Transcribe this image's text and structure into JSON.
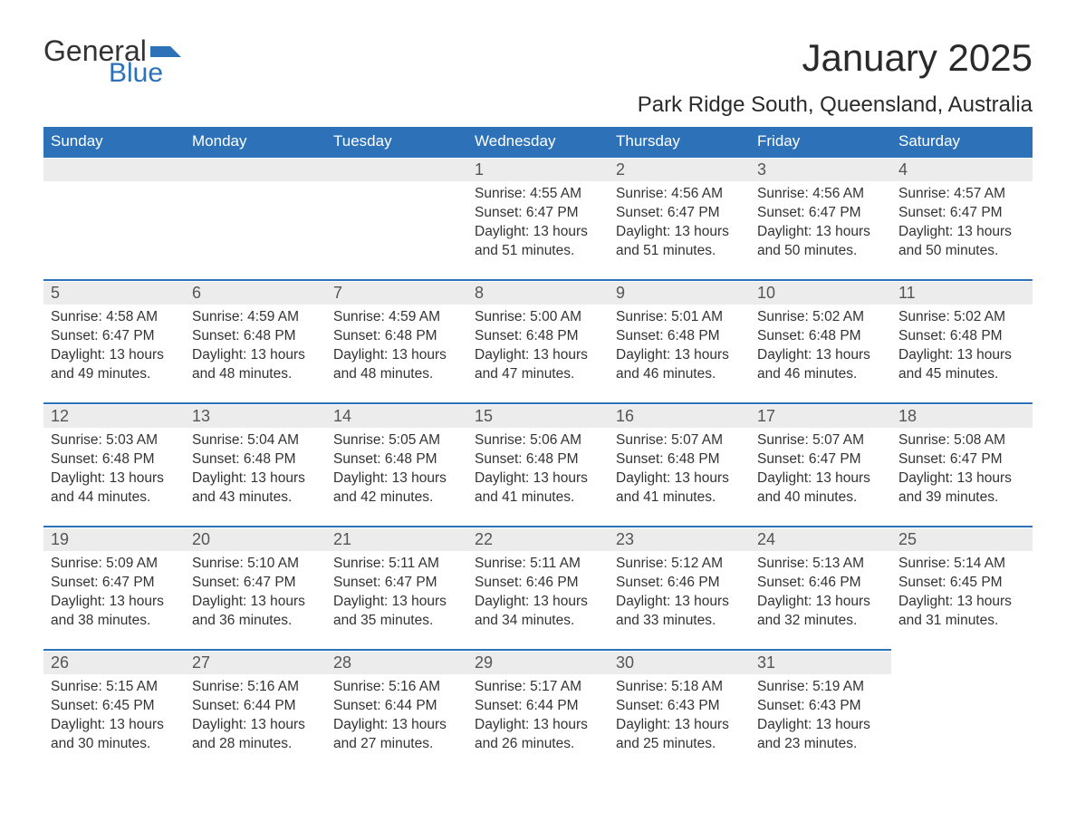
{
  "logo": {
    "text1": "General",
    "text2": "Blue",
    "flag_color": "#2d72b8"
  },
  "title": "January 2025",
  "location": "Park Ridge South, Queensland, Australia",
  "colors": {
    "header_bg": "#2d72b8",
    "header_text": "#ffffff",
    "daynum_bg": "#ececec",
    "daynum_text": "#555555",
    "body_text": "#333333",
    "background": "#ffffff"
  },
  "day_headers": [
    "Sunday",
    "Monday",
    "Tuesday",
    "Wednesday",
    "Thursday",
    "Friday",
    "Saturday"
  ],
  "weeks": [
    [
      {
        "blank": true
      },
      {
        "blank": true
      },
      {
        "blank": true
      },
      {
        "n": "1",
        "sr": "Sunrise: 4:55 AM",
        "ss": "Sunset: 6:47 PM",
        "d1": "Daylight: 13 hours",
        "d2": "and 51 minutes."
      },
      {
        "n": "2",
        "sr": "Sunrise: 4:56 AM",
        "ss": "Sunset: 6:47 PM",
        "d1": "Daylight: 13 hours",
        "d2": "and 51 minutes."
      },
      {
        "n": "3",
        "sr": "Sunrise: 4:56 AM",
        "ss": "Sunset: 6:47 PM",
        "d1": "Daylight: 13 hours",
        "d2": "and 50 minutes."
      },
      {
        "n": "4",
        "sr": "Sunrise: 4:57 AM",
        "ss": "Sunset: 6:47 PM",
        "d1": "Daylight: 13 hours",
        "d2": "and 50 minutes."
      }
    ],
    [
      {
        "n": "5",
        "sr": "Sunrise: 4:58 AM",
        "ss": "Sunset: 6:47 PM",
        "d1": "Daylight: 13 hours",
        "d2": "and 49 minutes."
      },
      {
        "n": "6",
        "sr": "Sunrise: 4:59 AM",
        "ss": "Sunset: 6:48 PM",
        "d1": "Daylight: 13 hours",
        "d2": "and 48 minutes."
      },
      {
        "n": "7",
        "sr": "Sunrise: 4:59 AM",
        "ss": "Sunset: 6:48 PM",
        "d1": "Daylight: 13 hours",
        "d2": "and 48 minutes."
      },
      {
        "n": "8",
        "sr": "Sunrise: 5:00 AM",
        "ss": "Sunset: 6:48 PM",
        "d1": "Daylight: 13 hours",
        "d2": "and 47 minutes."
      },
      {
        "n": "9",
        "sr": "Sunrise: 5:01 AM",
        "ss": "Sunset: 6:48 PM",
        "d1": "Daylight: 13 hours",
        "d2": "and 46 minutes."
      },
      {
        "n": "10",
        "sr": "Sunrise: 5:02 AM",
        "ss": "Sunset: 6:48 PM",
        "d1": "Daylight: 13 hours",
        "d2": "and 46 minutes."
      },
      {
        "n": "11",
        "sr": "Sunrise: 5:02 AM",
        "ss": "Sunset: 6:48 PM",
        "d1": "Daylight: 13 hours",
        "d2": "and 45 minutes."
      }
    ],
    [
      {
        "n": "12",
        "sr": "Sunrise: 5:03 AM",
        "ss": "Sunset: 6:48 PM",
        "d1": "Daylight: 13 hours",
        "d2": "and 44 minutes."
      },
      {
        "n": "13",
        "sr": "Sunrise: 5:04 AM",
        "ss": "Sunset: 6:48 PM",
        "d1": "Daylight: 13 hours",
        "d2": "and 43 minutes."
      },
      {
        "n": "14",
        "sr": "Sunrise: 5:05 AM",
        "ss": "Sunset: 6:48 PM",
        "d1": "Daylight: 13 hours",
        "d2": "and 42 minutes."
      },
      {
        "n": "15",
        "sr": "Sunrise: 5:06 AM",
        "ss": "Sunset: 6:48 PM",
        "d1": "Daylight: 13 hours",
        "d2": "and 41 minutes."
      },
      {
        "n": "16",
        "sr": "Sunrise: 5:07 AM",
        "ss": "Sunset: 6:48 PM",
        "d1": "Daylight: 13 hours",
        "d2": "and 41 minutes."
      },
      {
        "n": "17",
        "sr": "Sunrise: 5:07 AM",
        "ss": "Sunset: 6:47 PM",
        "d1": "Daylight: 13 hours",
        "d2": "and 40 minutes."
      },
      {
        "n": "18",
        "sr": "Sunrise: 5:08 AM",
        "ss": "Sunset: 6:47 PM",
        "d1": "Daylight: 13 hours",
        "d2": "and 39 minutes."
      }
    ],
    [
      {
        "n": "19",
        "sr": "Sunrise: 5:09 AM",
        "ss": "Sunset: 6:47 PM",
        "d1": "Daylight: 13 hours",
        "d2": "and 38 minutes."
      },
      {
        "n": "20",
        "sr": "Sunrise: 5:10 AM",
        "ss": "Sunset: 6:47 PM",
        "d1": "Daylight: 13 hours",
        "d2": "and 36 minutes."
      },
      {
        "n": "21",
        "sr": "Sunrise: 5:11 AM",
        "ss": "Sunset: 6:47 PM",
        "d1": "Daylight: 13 hours",
        "d2": "and 35 minutes."
      },
      {
        "n": "22",
        "sr": "Sunrise: 5:11 AM",
        "ss": "Sunset: 6:46 PM",
        "d1": "Daylight: 13 hours",
        "d2": "and 34 minutes."
      },
      {
        "n": "23",
        "sr": "Sunrise: 5:12 AM",
        "ss": "Sunset: 6:46 PM",
        "d1": "Daylight: 13 hours",
        "d2": "and 33 minutes."
      },
      {
        "n": "24",
        "sr": "Sunrise: 5:13 AM",
        "ss": "Sunset: 6:46 PM",
        "d1": "Daylight: 13 hours",
        "d2": "and 32 minutes."
      },
      {
        "n": "25",
        "sr": "Sunrise: 5:14 AM",
        "ss": "Sunset: 6:45 PM",
        "d1": "Daylight: 13 hours",
        "d2": "and 31 minutes."
      }
    ],
    [
      {
        "n": "26",
        "sr": "Sunrise: 5:15 AM",
        "ss": "Sunset: 6:45 PM",
        "d1": "Daylight: 13 hours",
        "d2": "and 30 minutes."
      },
      {
        "n": "27",
        "sr": "Sunrise: 5:16 AM",
        "ss": "Sunset: 6:44 PM",
        "d1": "Daylight: 13 hours",
        "d2": "and 28 minutes."
      },
      {
        "n": "28",
        "sr": "Sunrise: 5:16 AM",
        "ss": "Sunset: 6:44 PM",
        "d1": "Daylight: 13 hours",
        "d2": "and 27 minutes."
      },
      {
        "n": "29",
        "sr": "Sunrise: 5:17 AM",
        "ss": "Sunset: 6:44 PM",
        "d1": "Daylight: 13 hours",
        "d2": "and 26 minutes."
      },
      {
        "n": "30",
        "sr": "Sunrise: 5:18 AM",
        "ss": "Sunset: 6:43 PM",
        "d1": "Daylight: 13 hours",
        "d2": "and 25 minutes."
      },
      {
        "n": "31",
        "sr": "Sunrise: 5:19 AM",
        "ss": "Sunset: 6:43 PM",
        "d1": "Daylight: 13 hours",
        "d2": "and 23 minutes."
      },
      {
        "blank": true,
        "noborder": true
      }
    ]
  ]
}
